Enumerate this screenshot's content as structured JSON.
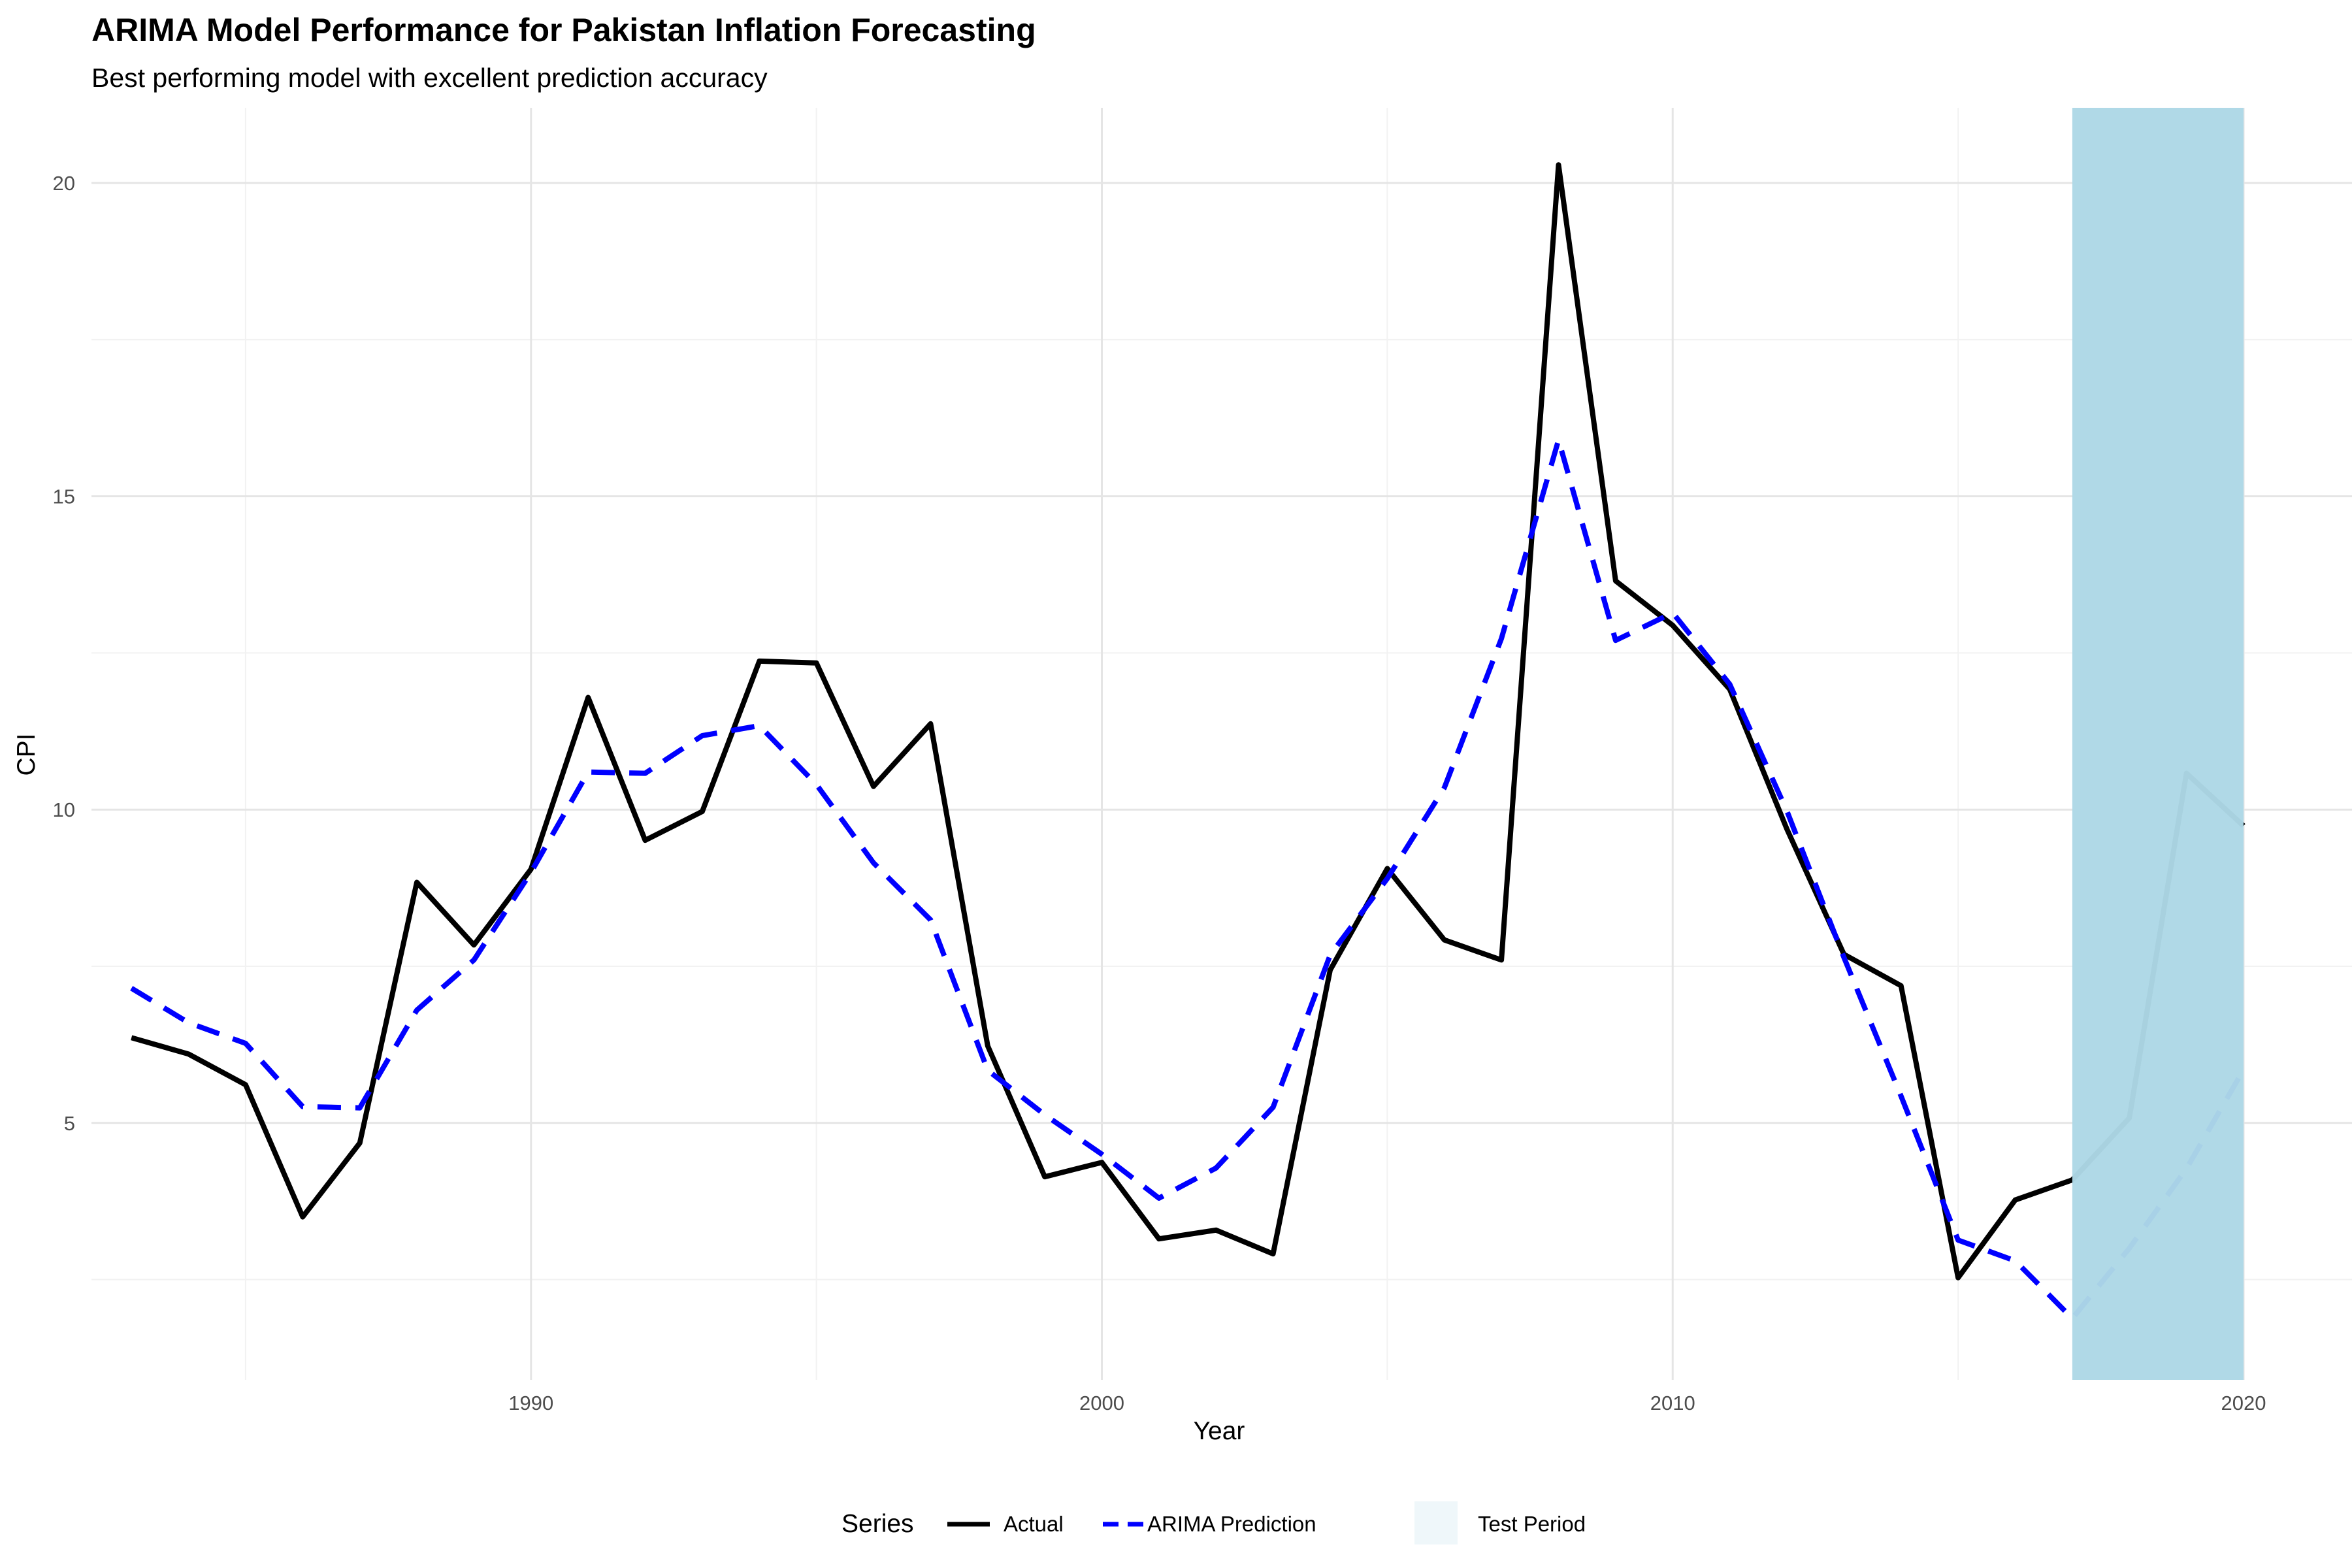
{
  "chart_data": {
    "type": "line",
    "title": "ARIMA Model Performance for Pakistan Inflation Forecasting",
    "subtitle": "Best performing model with excellent prediction accuracy",
    "xlabel": "Year",
    "ylabel": "CPI",
    "xlim": [
      1982.3,
      2021.9
    ],
    "ylim": [
      0.9,
      21.2
    ],
    "x_ticks": [
      1990,
      2000,
      2010,
      2020
    ],
    "y_ticks": [
      5,
      10,
      15,
      20
    ],
    "grid": true,
    "legend": {
      "title": "Series",
      "position": "bottom",
      "entries": [
        "Actual",
        "ARIMA Prediction",
        "Test Period"
      ]
    },
    "test_period": {
      "start": 2017,
      "end": 2020,
      "label": "Test Period",
      "color": "#add8e6"
    },
    "x": [
      1983,
      1984,
      1985,
      1986,
      1987,
      1988,
      1989,
      1990,
      1991,
      1992,
      1993,
      1994,
      1995,
      1996,
      1997,
      1998,
      1999,
      2000,
      2001,
      2002,
      2003,
      2004,
      2005,
      2006,
      2007,
      2008,
      2009,
      2010,
      2011,
      2012,
      2013,
      2014,
      2015,
      2016,
      2017,
      2018,
      2019,
      2020
    ],
    "series": [
      {
        "name": "Actual",
        "color": "#000000",
        "dash": "solid",
        "values": [
          6.36,
          6.1,
          5.61,
          3.5,
          4.68,
          8.84,
          7.84,
          9.05,
          11.79,
          9.51,
          9.97,
          12.37,
          12.34,
          10.37,
          11.37,
          6.23,
          4.14,
          4.37,
          3.15,
          3.29,
          2.91,
          7.44,
          9.06,
          7.92,
          7.6,
          20.29,
          13.65,
          12.94,
          11.92,
          9.69,
          7.69,
          7.19,
          2.53,
          3.77,
          4.09,
          5.08,
          10.58,
          9.74
        ]
      },
      {
        "name": "ARIMA Prediction",
        "color": "#0000ff",
        "dash": "dashed",
        "values": [
          7.15,
          6.6,
          6.27,
          5.26,
          5.24,
          6.8,
          7.6,
          9.0,
          10.6,
          10.58,
          11.18,
          11.34,
          10.4,
          9.15,
          8.24,
          5.84,
          5.13,
          4.5,
          3.8,
          4.28,
          5.25,
          7.68,
          8.9,
          10.35,
          12.73,
          15.9,
          12.7,
          13.14,
          12.0,
          9.98,
          7.64,
          5.43,
          3.13,
          2.8,
          1.88,
          3.0,
          4.27,
          5.85
        ]
      }
    ]
  }
}
